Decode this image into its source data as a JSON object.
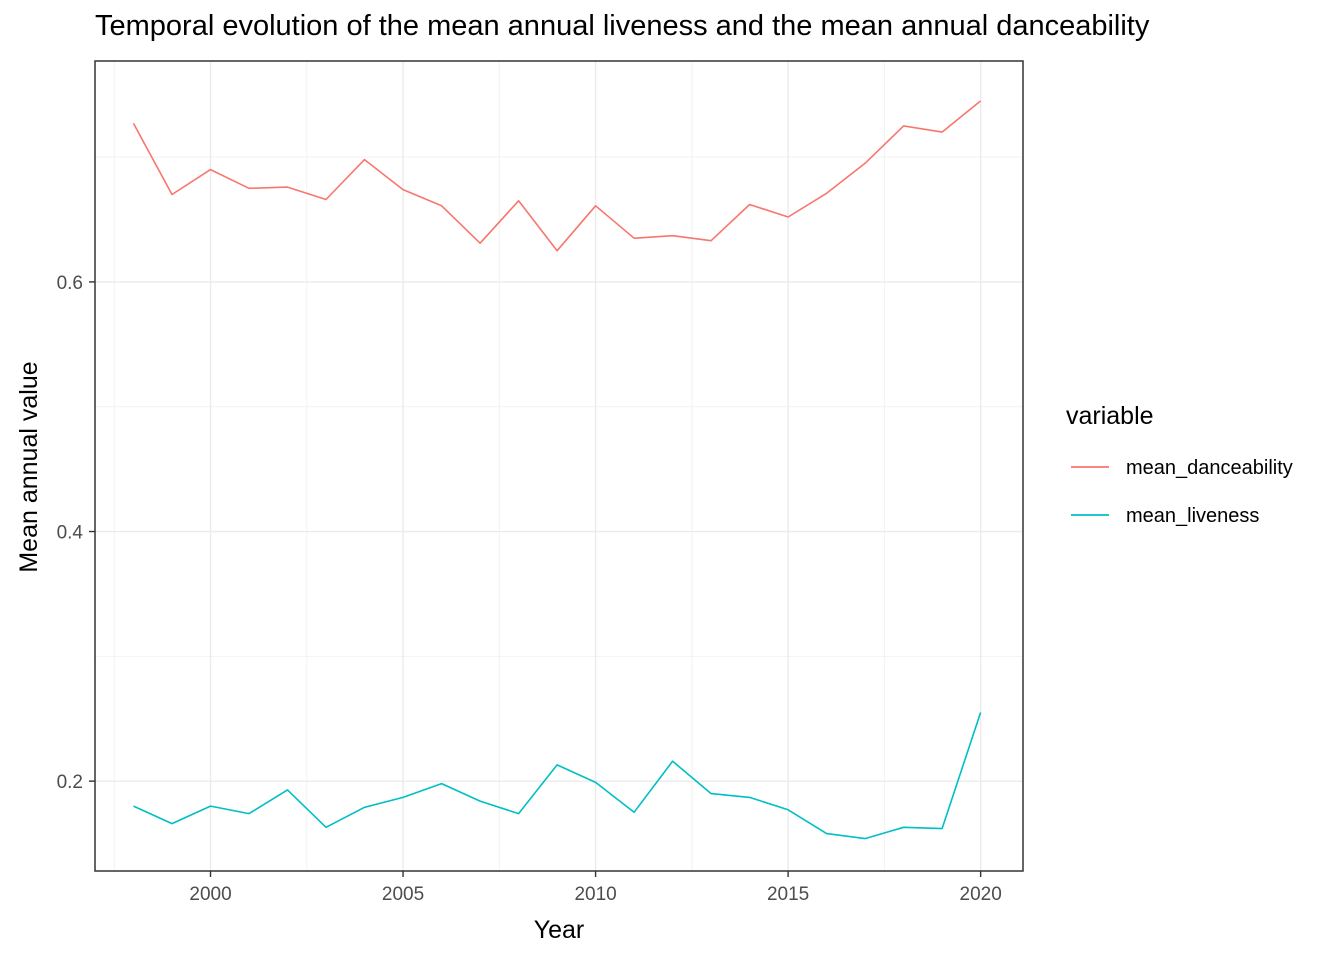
{
  "chart_data": {
    "type": "line",
    "title": "Temporal evolution of the mean annual liveness and the mean annual danceability",
    "xlabel": "Year",
    "ylabel": "Mean annual value",
    "xlim": [
      1997,
      2021.1
    ],
    "ylim": [
      0.128,
      0.777
    ],
    "x_ticks": [
      2000,
      2005,
      2010,
      2015,
      2020
    ],
    "y_ticks": [
      0.2,
      0.4,
      0.6
    ],
    "x_tick_labels": [
      "2000",
      "2005",
      "2010",
      "2015",
      "2020"
    ],
    "y_tick_labels": [
      "0.2",
      "0.4",
      "0.6"
    ],
    "grid": true,
    "legend": {
      "title": "variable",
      "position": "right"
    },
    "x": [
      1998,
      1999,
      2000,
      2001,
      2002,
      2003,
      2004,
      2005,
      2006,
      2007,
      2008,
      2009,
      2010,
      2011,
      2012,
      2013,
      2014,
      2015,
      2016,
      2017,
      2018,
      2019,
      2020
    ],
    "series": [
      {
        "name": "mean_danceability",
        "color": "#F8766D",
        "values": [
          0.727,
          0.67,
          0.69,
          0.675,
          0.676,
          0.666,
          0.698,
          0.674,
          0.661,
          0.631,
          0.665,
          0.625,
          0.661,
          0.635,
          0.637,
          0.633,
          0.662,
          0.652,
          0.671,
          0.695,
          0.725,
          0.72,
          0.745
        ]
      },
      {
        "name": "mean_liveness",
        "color": "#00BFC4",
        "values": [
          0.18,
          0.166,
          0.18,
          0.174,
          0.193,
          0.163,
          0.179,
          0.187,
          0.198,
          0.184,
          0.174,
          0.213,
          0.199,
          0.175,
          0.216,
          0.19,
          0.187,
          0.177,
          0.158,
          0.154,
          0.163,
          0.162,
          0.255
        ]
      }
    ]
  }
}
